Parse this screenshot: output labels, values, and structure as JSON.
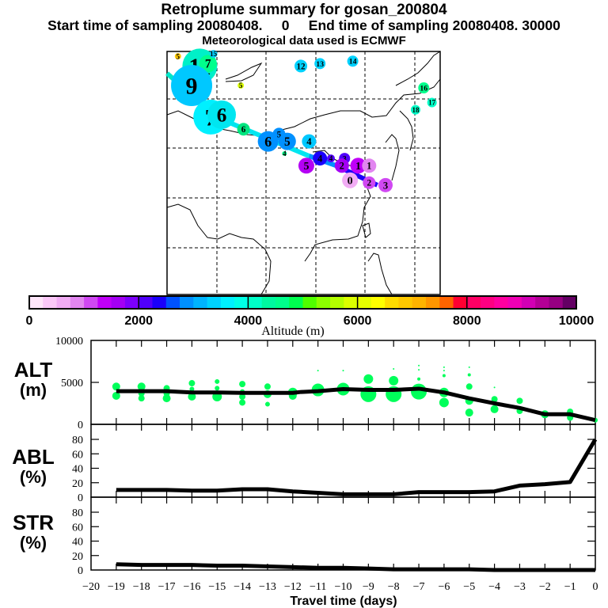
{
  "header": {
    "title": "Retroplume summary for gosan_200804",
    "subtitle": "Start time of sampling 20080408.     0     End time of sampling 20080408. 30000",
    "met_line": "Meteorological data used is ECMWF"
  },
  "colorbar": {
    "label": "Altitude (m)",
    "tick_labels": [
      "0",
      "2000",
      "4000",
      "6000",
      "8000",
      "10000"
    ],
    "range": [
      0,
      10000
    ],
    "colors": [
      "#ffe6fa",
      "#fbc8f8",
      "#f1acf4",
      "#e286f0",
      "#d048f2",
      "#c000f8",
      "#a400f4",
      "#7d00fb",
      "#5000fb",
      "#1a00fb",
      "#0052ff",
      "#0090ff",
      "#00b4ff",
      "#00d2ff",
      "#00f0ff",
      "#00ffe6",
      "#00ffc8",
      "#00f8a0",
      "#00ff8c",
      "#00ff50",
      "#50ff00",
      "#8cff00",
      "#b4ff00",
      "#dcff00",
      "#e6ff00",
      "#ffff00",
      "#ffdc00",
      "#ffc800",
      "#ffb400",
      "#ff9600",
      "#ff6400",
      "#ff0032",
      "#ff0064",
      "#ff0082",
      "#ff00a0",
      "#f000b4",
      "#d200b4",
      "#b40096",
      "#960082",
      "#640064"
    ]
  },
  "map": {
    "markers": [
      {
        "label": "11",
        "lon": 0.12,
        "lat": 0.06,
        "size": 22,
        "color": "#00f0c8"
      },
      {
        "label": "7",
        "lon": 0.15,
        "lat": 0.05,
        "size": 11,
        "color": "#00ff8c"
      },
      {
        "label": "5",
        "lon": 0.04,
        "lat": 0.02,
        "size": 4,
        "color": "#ffc800"
      },
      {
        "label": "15",
        "lon": 0.17,
        "lat": 0.01,
        "size": 5,
        "color": "#00d2ff"
      },
      {
        "label": "9",
        "lon": 0.09,
        "lat": 0.14,
        "size": 26,
        "color": "#00c8ff"
      },
      {
        "label": "7",
        "lon": 0.16,
        "lat": 0.27,
        "size": 22,
        "color": "#00f0ff"
      },
      {
        "label": "6",
        "lon": 0.2,
        "lat": 0.26,
        "size": 18,
        "color": "#00e6f0"
      },
      {
        "label": "5",
        "lon": 0.27,
        "lat": 0.14,
        "size": 4,
        "color": "#dcff00"
      },
      {
        "label": "12",
        "lon": 0.49,
        "lat": 0.06,
        "size": 8,
        "color": "#00d2ff"
      },
      {
        "label": "13",
        "lon": 0.56,
        "lat": 0.05,
        "size": 7,
        "color": "#00d2ff"
      },
      {
        "label": "14",
        "lon": 0.68,
        "lat": 0.04,
        "size": 7,
        "color": "#00d2ff"
      },
      {
        "label": "16",
        "lon": 0.94,
        "lat": 0.15,
        "size": 7,
        "color": "#00ff8c"
      },
      {
        "label": "17",
        "lon": 0.97,
        "lat": 0.21,
        "size": 6,
        "color": "#00ffc8"
      },
      {
        "label": "18",
        "lon": 0.91,
        "lat": 0.24,
        "size": 6,
        "color": "#00ffc8"
      },
      {
        "label": "6",
        "lon": 0.28,
        "lat": 0.32,
        "size": 8,
        "color": "#00e67f"
      },
      {
        "label": "6",
        "lon": 0.37,
        "lat": 0.37,
        "size": 13,
        "color": "#0090ff"
      },
      {
        "label": "5",
        "lon": 0.41,
        "lat": 0.34,
        "size": 8,
        "color": "#0090ff"
      },
      {
        "label": "5",
        "lon": 0.44,
        "lat": 0.37,
        "size": 11,
        "color": "#0090ff"
      },
      {
        "label": "4",
        "lon": 0.52,
        "lat": 0.37,
        "size": 9,
        "color": "#00c8ff"
      },
      {
        "label": "4",
        "lon": 0.43,
        "lat": 0.42,
        "size": 3,
        "color": "#00ff8c"
      },
      {
        "label": "5",
        "lon": 0.51,
        "lat": 0.47,
        "size": 10,
        "color": "#b400f4"
      },
      {
        "label": "4",
        "lon": 0.56,
        "lat": 0.44,
        "size": 9,
        "color": "#1a00fb"
      },
      {
        "label": "4",
        "lon": 0.6,
        "lat": 0.44,
        "size": 5,
        "color": "#5000fb"
      },
      {
        "label": "3",
        "lon": 0.65,
        "lat": 0.44,
        "size": 7,
        "color": "#5000fb"
      },
      {
        "label": "2",
        "lon": 0.64,
        "lat": 0.47,
        "size": 9,
        "color": "#a400f4"
      },
      {
        "label": "1",
        "lon": 0.7,
        "lat": 0.47,
        "size": 10,
        "color": "#c000f8"
      },
      {
        "label": "1",
        "lon": 0.74,
        "lat": 0.47,
        "size": 9,
        "color": "#e286f0"
      },
      {
        "label": "0",
        "lon": 0.67,
        "lat": 0.53,
        "size": 10,
        "color": "#f1acf4"
      },
      {
        "label": "2",
        "lon": 0.74,
        "lat": 0.54,
        "size": 8,
        "color": "#d048f2"
      },
      {
        "label": "3",
        "lon": 0.8,
        "lat": 0.55,
        "size": 9,
        "color": "#d048f2"
      }
    ],
    "path_segments": [
      {
        "from": [
          0.0,
          0.09
        ],
        "to": [
          0.18,
          0.27
        ],
        "color": "#00e6c8"
      },
      {
        "from": [
          0.18,
          0.27
        ],
        "to": [
          0.52,
          0.43
        ],
        "color": "#00e6f0"
      },
      {
        "from": [
          0.52,
          0.43
        ],
        "to": [
          0.62,
          0.47
        ],
        "color": "#0090ff"
      },
      {
        "from": [
          0.62,
          0.47
        ],
        "to": [
          0.77,
          0.55
        ],
        "color": "#1a00fb"
      }
    ]
  },
  "chart_data": [
    {
      "type": "line",
      "panel": "ALT",
      "title": "ALT (m)",
      "ylabel": "ALT (m)",
      "xlabel": "Travel time (days)",
      "ylim": [
        0,
        10000
      ],
      "yticks": [
        "0",
        "5000",
        "10000"
      ],
      "x": [
        -19,
        -18,
        -17,
        -16,
        -15,
        -14,
        -13,
        -12,
        -11.7,
        -11,
        -10,
        -9,
        -8,
        -7,
        -6,
        -5,
        -4,
        -3,
        -2,
        -1,
        0
      ],
      "series": [
        {
          "name": "mean altitude",
          "values": [
            3950,
            3950,
            3950,
            3800,
            3800,
            3750,
            3750,
            3750,
            3850,
            3950,
            4200,
            4100,
            4100,
            4250,
            3800,
            3100,
            2500,
            1950,
            1200,
            1200,
            500
          ]
        }
      ],
      "scatter": [
        {
          "x": -19,
          "y": 4500,
          "s": 5
        },
        {
          "x": -19,
          "y": 3400,
          "s": 5
        },
        {
          "x": -18,
          "y": 4500,
          "s": 5
        },
        {
          "x": -18,
          "y": 3700,
          "s": 4
        },
        {
          "x": -18,
          "y": 3100,
          "s": 4
        },
        {
          "x": -17,
          "y": 4300,
          "s": 4
        },
        {
          "x": -17,
          "y": 3700,
          "s": 4
        },
        {
          "x": -17,
          "y": 3100,
          "s": 5
        },
        {
          "x": -16,
          "y": 4900,
          "s": 4
        },
        {
          "x": -16,
          "y": 4200,
          "s": 3
        },
        {
          "x": -16,
          "y": 3300,
          "s": 5
        },
        {
          "x": -15,
          "y": 5100,
          "s": 3
        },
        {
          "x": -15,
          "y": 4300,
          "s": 3
        },
        {
          "x": -15,
          "y": 3300,
          "s": 6
        },
        {
          "x": -14,
          "y": 4800,
          "s": 4
        },
        {
          "x": -14,
          "y": 3900,
          "s": 3
        },
        {
          "x": -14,
          "y": 3300,
          "s": 4
        },
        {
          "x": -14,
          "y": 2600,
          "s": 4
        },
        {
          "x": -13,
          "y": 4500,
          "s": 4
        },
        {
          "x": -13,
          "y": 3600,
          "s": 5
        },
        {
          "x": -13,
          "y": 2400,
          "s": 3
        },
        {
          "x": -12,
          "y": 3800,
          "s": 6
        },
        {
          "x": -12,
          "y": 3400,
          "s": 5
        },
        {
          "x": -11,
          "y": 6400,
          "s": 1
        },
        {
          "x": -11,
          "y": 4100,
          "s": 8
        },
        {
          "x": -10,
          "y": 6400,
          "s": 1
        },
        {
          "x": -10,
          "y": 4200,
          "s": 8
        },
        {
          "x": -9,
          "y": 5400,
          "s": 6
        },
        {
          "x": -9,
          "y": 3600,
          "s": 10
        },
        {
          "x": -8,
          "y": 6600,
          "s": 1
        },
        {
          "x": -8,
          "y": 5200,
          "s": 6
        },
        {
          "x": -8,
          "y": 3600,
          "s": 10
        },
        {
          "x": -7,
          "y": 7000,
          "s": 1
        },
        {
          "x": -7,
          "y": 6500,
          "s": 1
        },
        {
          "x": -7,
          "y": 5400,
          "s": 2
        },
        {
          "x": -7,
          "y": 3900,
          "s": 10
        },
        {
          "x": -6,
          "y": 6800,
          "s": 1
        },
        {
          "x": -6,
          "y": 6400,
          "s": 1
        },
        {
          "x": -6,
          "y": 5800,
          "s": 2
        },
        {
          "x": -6,
          "y": 3800,
          "s": 6
        },
        {
          "x": -6,
          "y": 2600,
          "s": 6
        },
        {
          "x": -5,
          "y": 6800,
          "s": 1
        },
        {
          "x": -5,
          "y": 5900,
          "s": 2
        },
        {
          "x": -5,
          "y": 4500,
          "s": 4
        },
        {
          "x": -5,
          "y": 2800,
          "s": 5
        },
        {
          "x": -5,
          "y": 1400,
          "s": 5
        },
        {
          "x": -4,
          "y": 4400,
          "s": 1
        },
        {
          "x": -4,
          "y": 3000,
          "s": 4
        },
        {
          "x": -4,
          "y": 1800,
          "s": 5
        },
        {
          "x": -3,
          "y": 2800,
          "s": 4
        },
        {
          "x": -3,
          "y": 1600,
          "s": 4
        },
        {
          "x": -2,
          "y": 1200,
          "s": 5
        },
        {
          "x": -1,
          "y": 1500,
          "s": 4
        },
        {
          "x": -1,
          "y": 800,
          "s": 4
        },
        {
          "x": 0,
          "y": 500,
          "s": 3
        }
      ]
    },
    {
      "type": "line",
      "panel": "ABL",
      "title": "ABL (%)",
      "ylabel": "ABL (%)",
      "xlabel": "Travel time (days)",
      "ylim": [
        0,
        90
      ],
      "yticks": [
        "0",
        "20",
        "40",
        "60",
        "80"
      ],
      "x": [
        -19,
        -18,
        -17,
        -16,
        -15,
        -14,
        -13,
        -12,
        -11,
        -10,
        -9,
        -8,
        -7,
        -6,
        -5,
        -4,
        -3,
        -2,
        -1,
        0
      ],
      "series": [
        {
          "name": "ABL fraction",
          "values": [
            10,
            10,
            10,
            9,
            9,
            11,
            11,
            8,
            6,
            4,
            4,
            4,
            7,
            7,
            7,
            8,
            16,
            18,
            21,
            80
          ]
        }
      ]
    },
    {
      "type": "line",
      "panel": "STR",
      "title": "STR (%)",
      "ylabel": "STR (%)",
      "xlabel": "Travel time (days)",
      "xlim": [
        -20,
        0
      ],
      "ylim": [
        0,
        90
      ],
      "yticks": [
        "0",
        "20",
        "40",
        "60",
        "80"
      ],
      "xticks": [
        "-20",
        "-19",
        "-18",
        "-17",
        "-16",
        "-15",
        "-14",
        "-13",
        "-12",
        "-11",
        "-10",
        "-9",
        "-8",
        "-7",
        "-6",
        "-5",
        "-4",
        "-3",
        "-2",
        "-1",
        "0"
      ],
      "x": [
        -19,
        -18,
        -17,
        -16,
        -15,
        -14,
        -13,
        -12,
        -11,
        -10,
        -9,
        -8,
        -7,
        -6,
        -5,
        -4,
        -3,
        -2,
        -1,
        0
      ],
      "series": [
        {
          "name": "stratospheric fraction",
          "values": [
            8,
            7,
            7,
            7,
            6,
            6,
            5,
            4,
            3,
            3,
            2,
            1,
            1,
            1,
            1,
            0,
            0,
            0,
            0,
            0
          ]
        }
      ]
    }
  ],
  "panels": {
    "alt_label": "ALT",
    "alt_unit": "(m)",
    "abl_label": "ABL",
    "abl_unit": "(%)",
    "str_label": "STR",
    "str_unit": "(%)",
    "xlabel": "Travel time (days)"
  }
}
